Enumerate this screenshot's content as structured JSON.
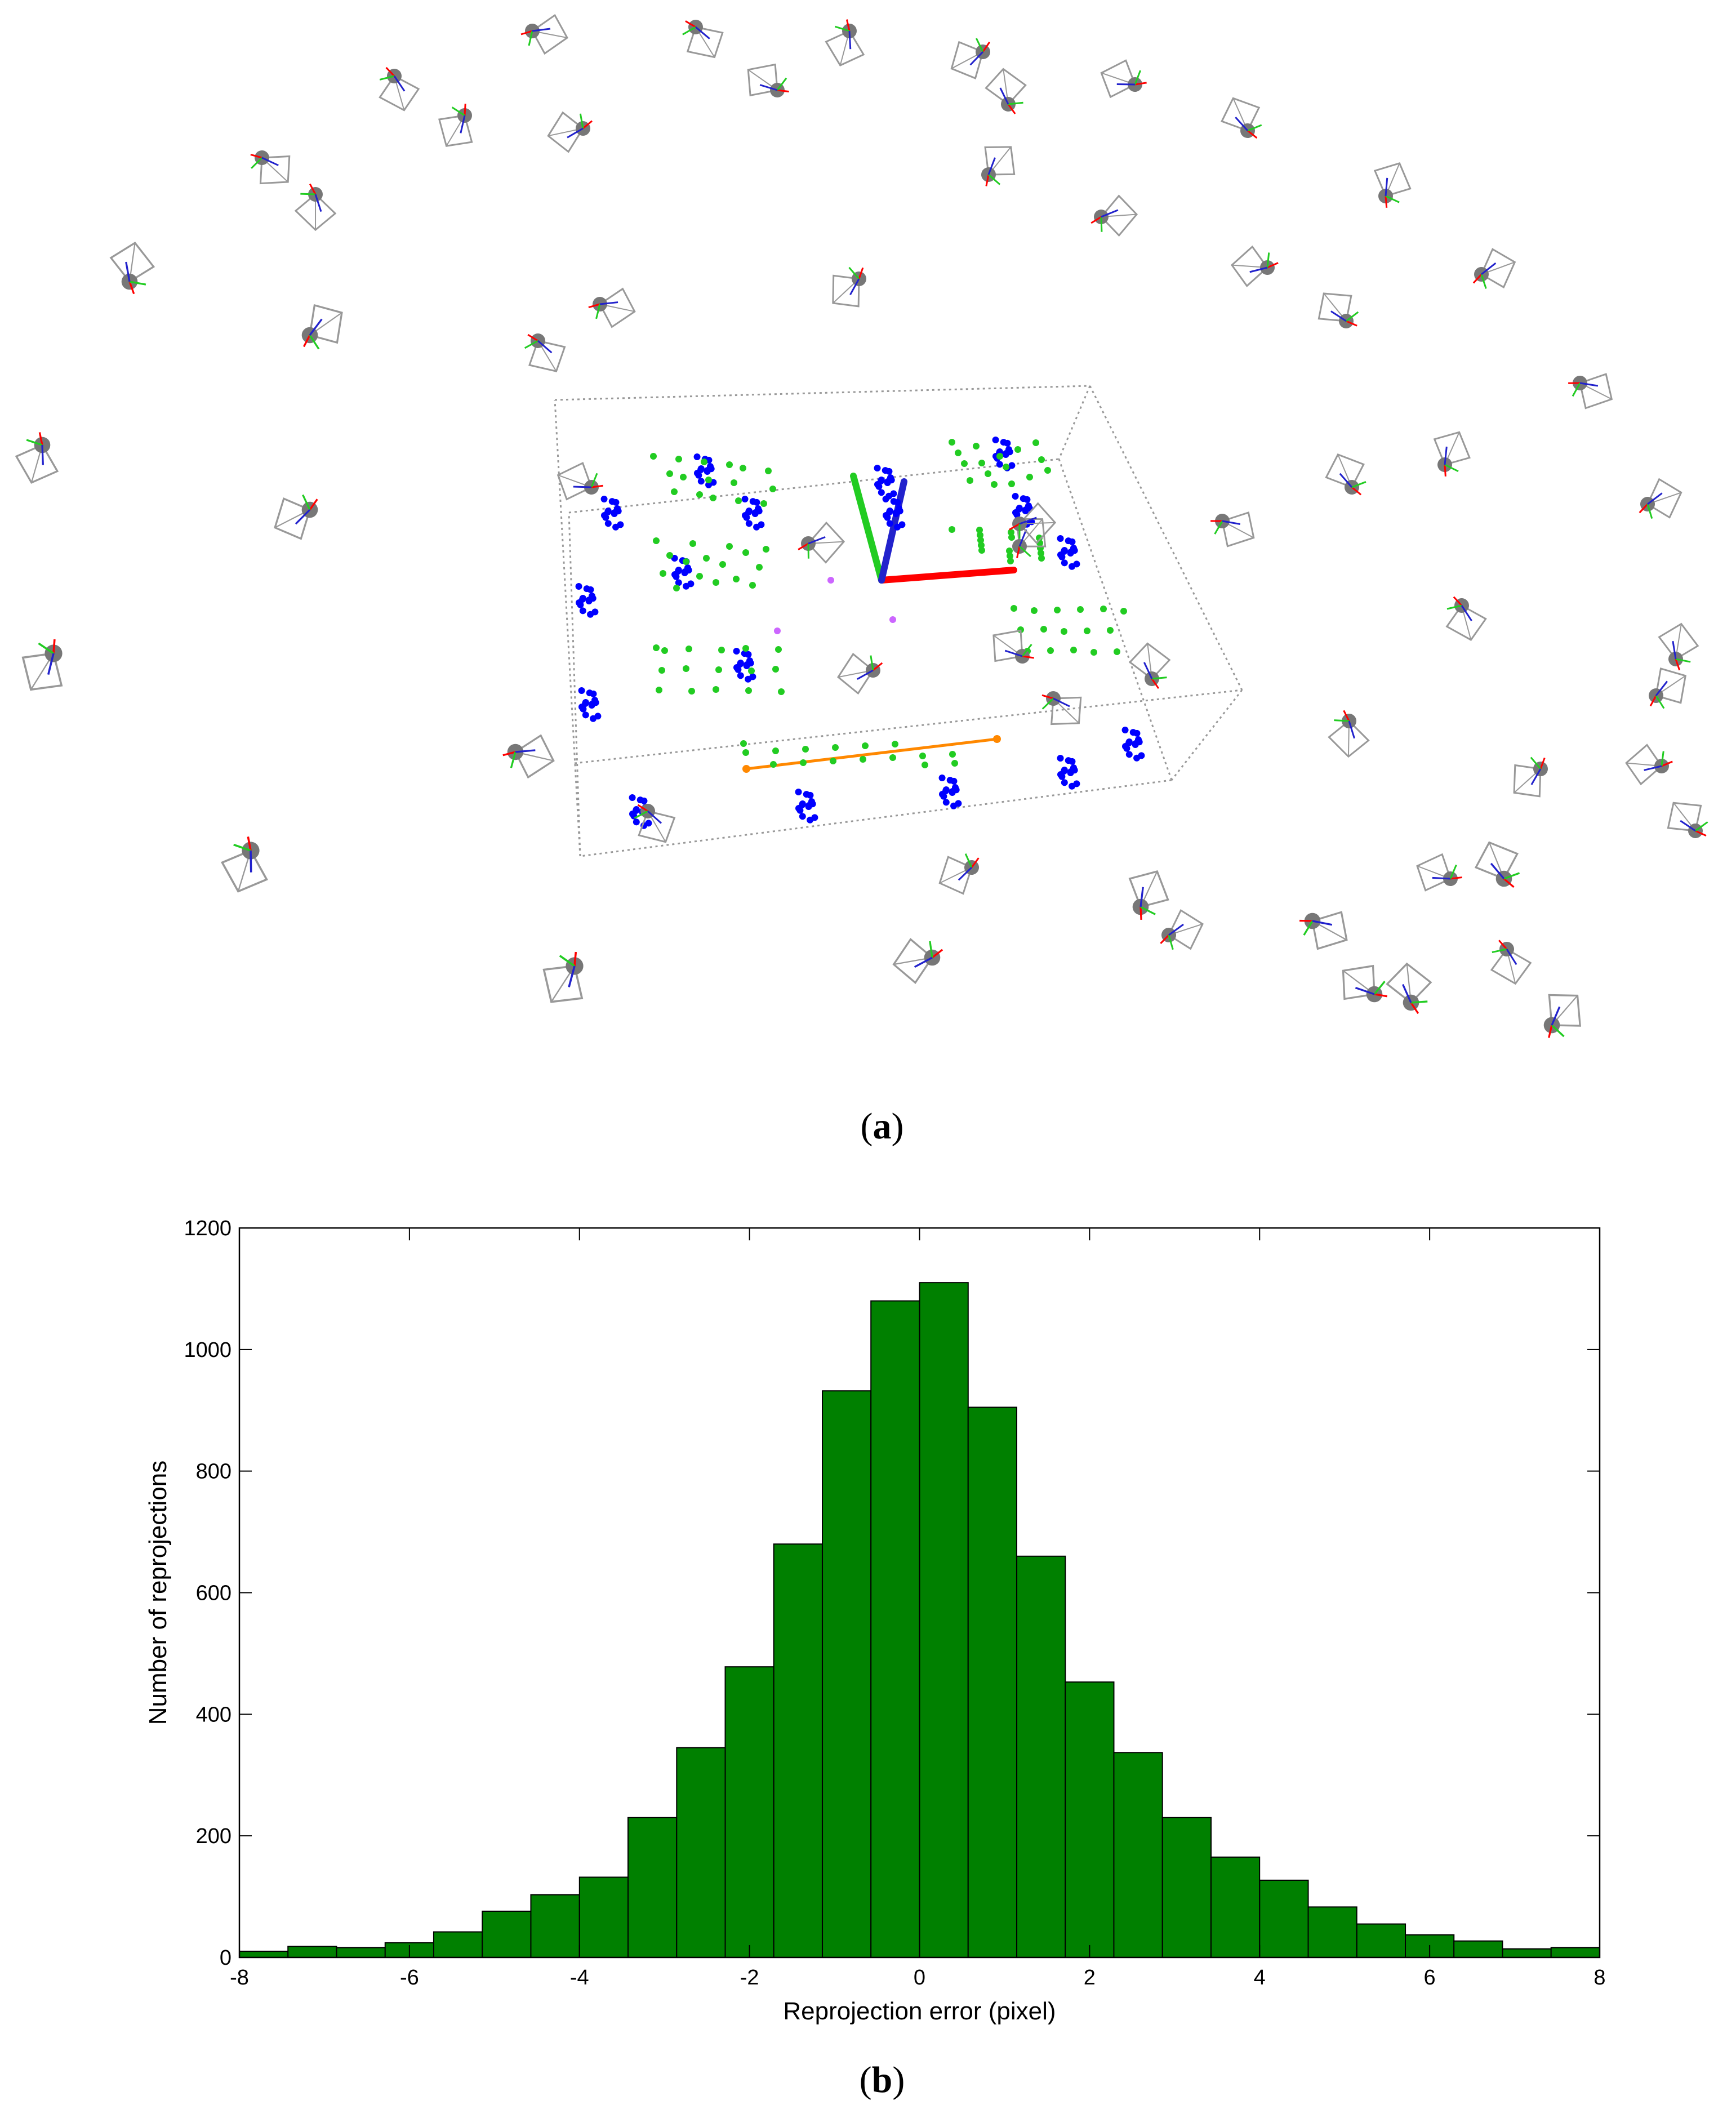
{
  "figure": {
    "caption_a": "a",
    "caption_b": "b"
  },
  "colors": {
    "bar_fill": "#008000",
    "bar_stroke": "#000000",
    "marker_blue": "#0000ff",
    "marker_green": "#22cc22",
    "marker_magenta": "#cc66ff",
    "axis_red": "#ff0000",
    "axis_green": "#22cc22",
    "axis_blue": "#2222cc",
    "scale_bar_orange": "#ff8800",
    "camera_gray": "#777777",
    "box_gray": "#999999"
  },
  "chart_data": {
    "type": "bar",
    "title": "",
    "xlabel": "Reprojection error (pixel)",
    "ylabel": "Number of reprojections",
    "xlim": [
      -8,
      8
    ],
    "ylim": [
      0,
      1200
    ],
    "xticks": [
      -8,
      -6,
      -4,
      -2,
      0,
      2,
      4,
      6,
      8
    ],
    "yticks": [
      0,
      200,
      400,
      600,
      800,
      1000,
      1200
    ],
    "bin_width": 0.5714,
    "bin_centers": [
      -7.714,
      -7.143,
      -6.571,
      -6.0,
      -5.429,
      -4.857,
      -4.286,
      -3.714,
      -3.143,
      -2.571,
      -2.0,
      -1.429,
      -0.857,
      -0.286,
      0.286,
      0.857,
      1.429,
      2.0,
      2.571,
      3.143,
      3.714,
      4.286,
      4.857,
      5.429,
      6.0,
      6.571,
      7.143,
      7.714
    ],
    "values": [
      10,
      18,
      16,
      24,
      42,
      76,
      103,
      132,
      230,
      345,
      478,
      680,
      932,
      1080,
      1110,
      905,
      660,
      453,
      337,
      230,
      165,
      127,
      83,
      55,
      37,
      27,
      14,
      16
    ],
    "grid": false,
    "legend": "none"
  }
}
